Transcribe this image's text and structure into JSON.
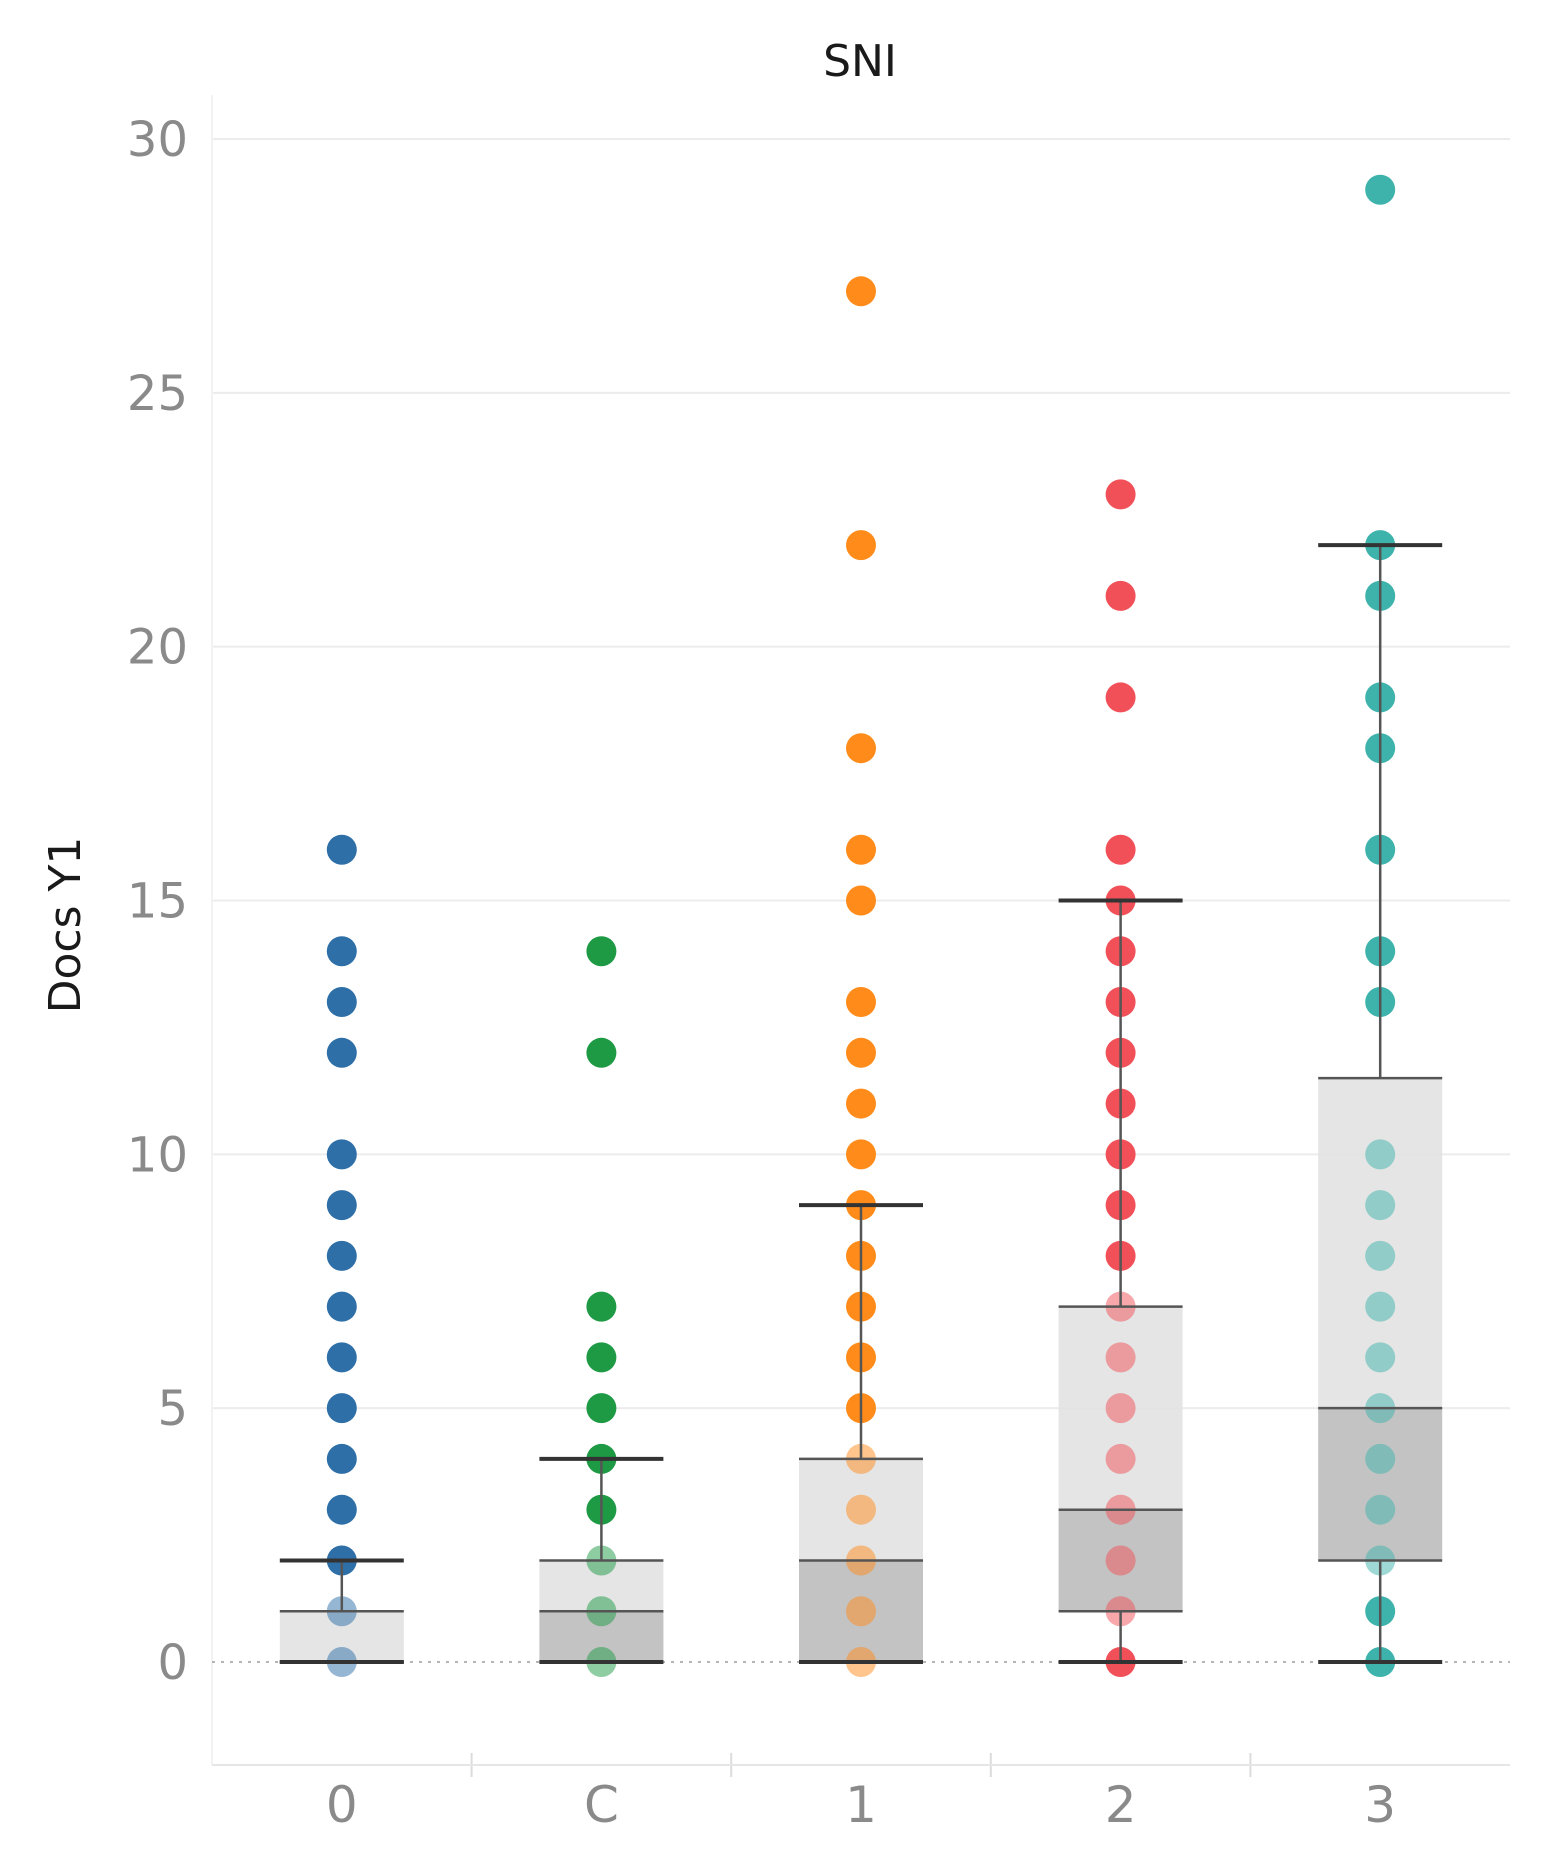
{
  "chart_data": {
    "type": "box_plot",
    "title": "SNI",
    "xlabel": "",
    "ylabel": "Docs Y1",
    "ylim": [
      -2,
      31
    ],
    "yticks": [
      0,
      5,
      10,
      15,
      20,
      25,
      30
    ],
    "grid": true,
    "categories": [
      "0",
      "C",
      "1",
      "2",
      "3"
    ],
    "colors": [
      "#2e6fa7",
      "#1e9a45",
      "#ff8c1a",
      "#f25058",
      "#3db3ab"
    ],
    "box_colors": {
      "lower": "#bdbdbd",
      "upper": "#e2e2e2",
      "line": "#555555"
    },
    "series": [
      {
        "name": "0",
        "points": [
          0,
          1,
          2,
          3,
          4,
          5,
          6,
          7,
          8,
          9,
          10,
          12,
          13,
          14,
          16
        ],
        "box": {
          "whisker_low": 0,
          "q1": 0,
          "median": 0,
          "q3": 1,
          "whisker_high": 2
        }
      },
      {
        "name": "C",
        "points": [
          0,
          1,
          2,
          3,
          4,
          5,
          6,
          7,
          12,
          14
        ],
        "box": {
          "whisker_low": 0,
          "q1": 0,
          "median": 1,
          "q3": 2,
          "whisker_high": 4
        }
      },
      {
        "name": "1",
        "points": [
          0,
          1,
          2,
          3,
          4,
          5,
          6,
          7,
          8,
          9,
          10,
          11,
          12,
          13,
          15,
          16,
          18,
          22,
          27
        ],
        "box": {
          "whisker_low": 0,
          "q1": 0,
          "median": 2,
          "q3": 4,
          "whisker_high": 9
        }
      },
      {
        "name": "2",
        "points": [
          0,
          1,
          2,
          3,
          4,
          5,
          6,
          7,
          8,
          9,
          10,
          11,
          12,
          13,
          14,
          15,
          16,
          19,
          21,
          23
        ],
        "box": {
          "whisker_low": 0,
          "q1": 1,
          "median": 3,
          "q3": 7,
          "whisker_high": 15
        }
      },
      {
        "name": "3",
        "points": [
          0,
          1,
          2,
          3,
          4,
          5,
          6,
          7,
          8,
          9,
          10,
          13,
          14,
          16,
          18,
          19,
          21,
          22,
          29
        ],
        "box": {
          "whisker_low": 0,
          "q1": 2,
          "median": 5,
          "q3": 11.5,
          "whisker_high": 22
        }
      }
    ]
  }
}
